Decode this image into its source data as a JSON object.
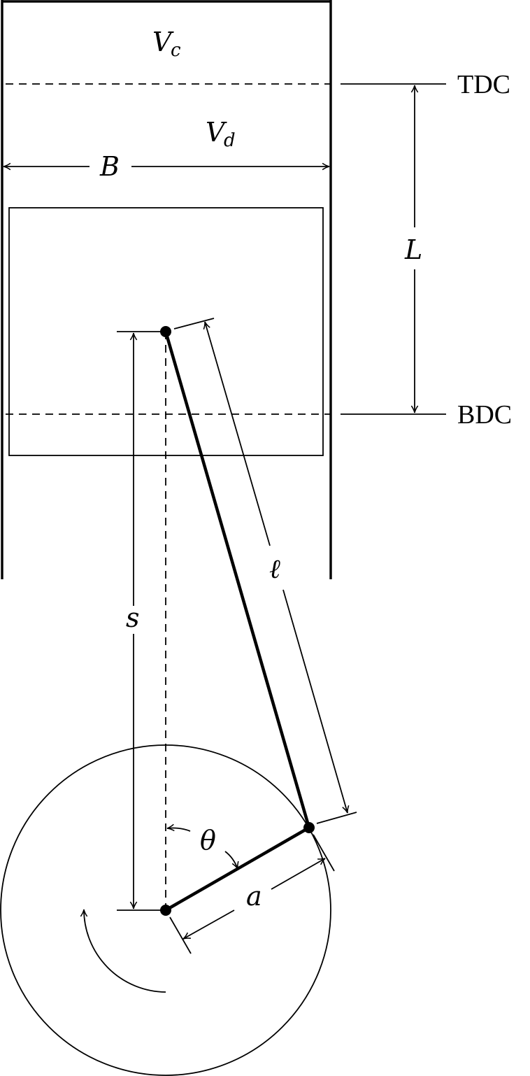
{
  "labels": {
    "clearance_volume": "V",
    "clearance_volume_sub": "c",
    "displacement_volume": "V",
    "displacement_volume_sub": "d",
    "bore": "B",
    "stroke_length": "L",
    "rod_length": "ℓ",
    "piston_position": "s",
    "crank_angle": "θ",
    "crank_radius": "a",
    "top_dead_center": "TDC",
    "bottom_dead_center": "BDC"
  }
}
